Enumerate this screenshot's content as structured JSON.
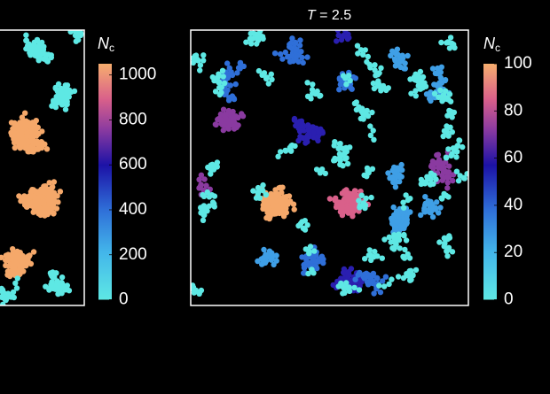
{
  "panels": [
    {
      "colorbar": {
        "label": "N",
        "label_sub": "c",
        "lim": [
          0,
          1050
        ],
        "ticks": [
          0,
          200,
          400,
          600,
          800,
          1000
        ]
      }
    },
    {
      "title": {
        "var": "T",
        "rest": " = 2.5"
      },
      "colorbar": {
        "label": "N",
        "label_sub": "c",
        "lim": [
          0,
          100
        ],
        "ticks": [
          0,
          20,
          40,
          60,
          80,
          100
        ]
      }
    }
  ]
}
